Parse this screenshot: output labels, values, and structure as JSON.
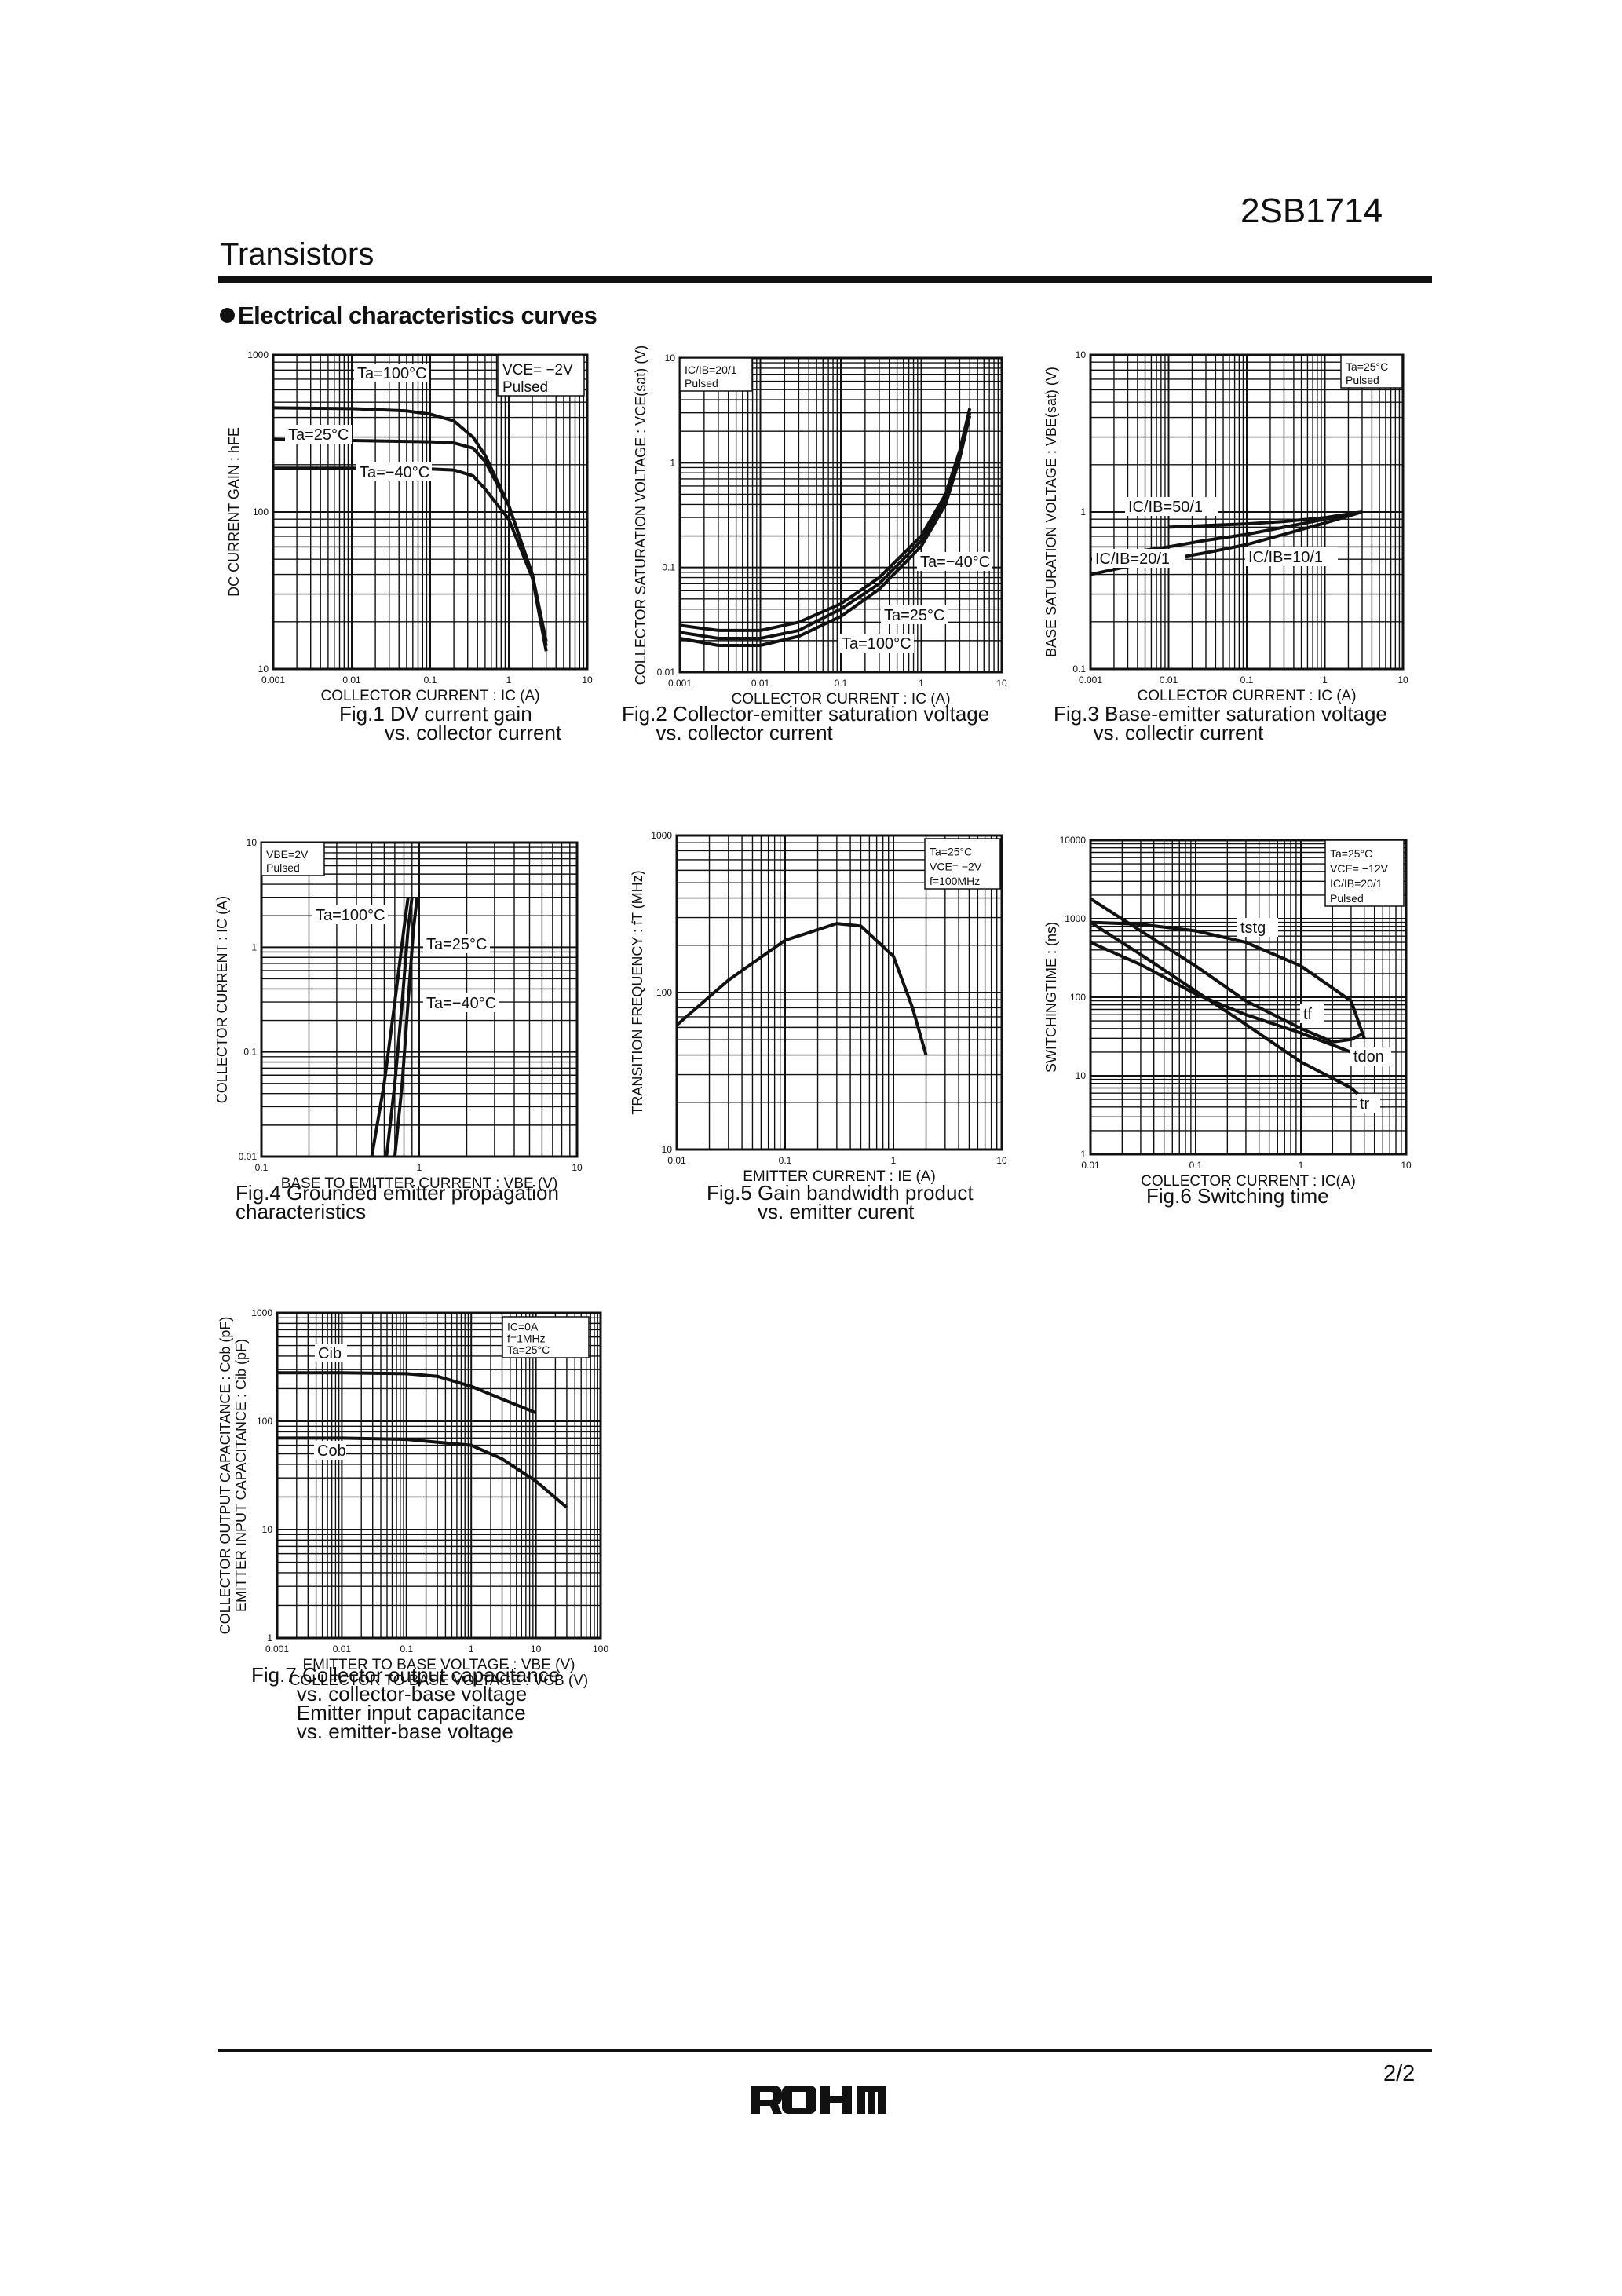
{
  "header": {
    "part_number": "2SB1714",
    "section": "Transistors"
  },
  "heading": "Electrical characteristics curves",
  "figures": [
    {
      "caption": "Fig.1 DV current gain\n        vs. collector current",
      "x_label": "COLLECTOR CURRENT : IC (A)",
      "y_label": "DC CURRENT GAIN : hFE",
      "x_ticks": [
        "0.001",
        "0.01",
        "0.1",
        "1",
        "10"
      ],
      "y_ticks": [
        "10",
        "100",
        "1000"
      ],
      "conditions": [
        "VCE= −2V",
        "Pulsed"
      ],
      "curve_labels": [
        "Ta=100°C",
        "Ta=25°C",
        "Ta=−40°C"
      ]
    },
    {
      "caption": "Fig.2 Collector-emitter saturation voltage\n      vs. collector current",
      "x_label": "COLLECTOR CURRENT : IC (A)",
      "y_label": "COLLECTOR SATURATION VOLTAGE : VCE(sat) (V)",
      "x_ticks": [
        "0.001",
        "0.01",
        "0.1",
        "1",
        "10"
      ],
      "y_ticks": [
        "0.01",
        "0.1",
        "1",
        "10"
      ],
      "conditions": [
        "IC/IB=20/1",
        "Pulsed"
      ],
      "curve_labels": [
        "Ta=−40°C",
        "Ta=25°C",
        "Ta=100°C"
      ]
    },
    {
      "caption": "Fig.3 Base-emitter saturation voltage\n       vs. collectir current",
      "x_label": "COLLECTOR CURRENT : IC (A)",
      "y_label": "BASE SATURATION VOLTAGE : VBE(sat) (V)",
      "x_ticks": [
        "0.001",
        "0.01",
        "0.1",
        "1",
        "10"
      ],
      "y_ticks": [
        "0.1",
        "1",
        "10"
      ],
      "conditions": [
        "Ta=25°C",
        "Pulsed"
      ],
      "curve_labels": [
        "IC/IB=50/1",
        "IC/IB=20/1",
        "IC/IB=10/1"
      ]
    },
    {
      "caption": "Fig.4 Grounded emitter propagation\ncharacteristics",
      "x_label": "BASE TO EMITTER CURRENT : VBE (V)",
      "y_label": "COLLECTOR CURRENT : IC (A)",
      "x_ticks": [
        "0.1",
        "1",
        "10"
      ],
      "y_ticks": [
        "0.01",
        "0.1",
        "1",
        "10"
      ],
      "conditions": [
        "VBE=2V",
        "Pulsed"
      ],
      "curve_labels": [
        "Ta=100°C",
        "Ta=25°C",
        "Ta=−40°C"
      ]
    },
    {
      "caption": "Fig.5 Gain bandwidth product\n         vs. emitter curent",
      "x_label": "EMITTER CURRENT : IE (A)",
      "y_label": "TRANSITION FREQUENCY : fT (MHz)",
      "x_ticks": [
        "0.01",
        "0.1",
        "1",
        "10"
      ],
      "y_ticks": [
        "10",
        "100",
        "1000"
      ],
      "conditions": [
        "Ta=25°C",
        "VCE= −2V",
        "f=100MHz"
      ],
      "curve_labels": []
    },
    {
      "caption": "Fig.6 Switching time",
      "x_label": "COLLECTOR CURRENT : IC(A)",
      "y_label": "SWITCHINGTIME : (ns)",
      "x_ticks": [
        "0.01",
        "0.1",
        "1",
        "10"
      ],
      "y_ticks": [
        "1",
        "10",
        "100",
        "1000",
        "10000"
      ],
      "conditions": [
        "Ta=25°C",
        "VCE= −12V",
        "IC/IB=20/1",
        "Pulsed"
      ],
      "curve_labels": [
        "tstg",
        "tf",
        "tdon",
        "tr"
      ]
    },
    {
      "caption": "Fig.7 Collector output capacitance\n        vs. collector-base voltage\n        Emitter input capacitance\n        vs. emitter-base voltage",
      "x_label": "EMITTER TO BASE VOLTAGE : VBE (V)",
      "x_label_2": "COLLECTOR TO BASE VOLTAGE : VCB (V)",
      "y_label": "COLLECTOR OUTPUT CAPACITANCE : Cob (pF)",
      "y_label_2": "EMITTER INPUT CAPACITANCE : Cib (pF)",
      "x_ticks": [
        "0.001",
        "0.01",
        "0.1",
        "1",
        "10",
        "100"
      ],
      "y_ticks": [
        "1",
        "10",
        "100",
        "1000"
      ],
      "conditions": [
        "IC=0A",
        "f=1MHz",
        "Ta=25°C"
      ],
      "curve_labels": [
        "Cib",
        "Cob"
      ]
    }
  ],
  "chart_data": [
    {
      "type": "line",
      "xscale": "log",
      "yscale": "log",
      "xlim": [
        0.001,
        10
      ],
      "ylim": [
        10,
        1000
      ],
      "series": [
        {
          "name": "Ta=100°C",
          "x": [
            0.001,
            0.01,
            0.05,
            0.1,
            0.2,
            0.35,
            0.5,
            1,
            2,
            3
          ],
          "y": [
            460,
            455,
            440,
            420,
            380,
            300,
            230,
            110,
            40,
            15
          ]
        },
        {
          "name": "Ta=25°C",
          "x": [
            0.001,
            0.01,
            0.1,
            0.2,
            0.35,
            0.5,
            1,
            2,
            3
          ],
          "y": [
            290,
            285,
            280,
            275,
            255,
            210,
            110,
            40,
            14
          ]
        },
        {
          "name": "Ta=−40°C",
          "x": [
            0.001,
            0.01,
            0.1,
            0.2,
            0.35,
            0.5,
            1,
            2,
            3
          ],
          "y": [
            190,
            190,
            188,
            185,
            170,
            140,
            90,
            38,
            13
          ]
        }
      ]
    },
    {
      "type": "line",
      "xscale": "log",
      "yscale": "log",
      "xlim": [
        0.001,
        10
      ],
      "ylim": [
        0.01,
        10
      ],
      "series": [
        {
          "name": "Ta=−40°C",
          "x": [
            0.001,
            0.003,
            0.01,
            0.03,
            0.1,
            0.3,
            1,
            2,
            3,
            4
          ],
          "y": [
            0.028,
            0.025,
            0.025,
            0.03,
            0.045,
            0.08,
            0.2,
            0.5,
            1.3,
            3.3
          ]
        },
        {
          "name": "Ta=25°C",
          "x": [
            0.001,
            0.003,
            0.01,
            0.03,
            0.1,
            0.3,
            1,
            2,
            3,
            4
          ],
          "y": [
            0.024,
            0.021,
            0.021,
            0.025,
            0.04,
            0.07,
            0.18,
            0.45,
            1.2,
            3
          ]
        },
        {
          "name": "Ta=100°C",
          "x": [
            0.001,
            0.003,
            0.01,
            0.03,
            0.1,
            0.3,
            1,
            2,
            3,
            4
          ],
          "y": [
            0.021,
            0.018,
            0.018,
            0.022,
            0.034,
            0.062,
            0.16,
            0.4,
            1.1,
            2.8
          ]
        }
      ]
    },
    {
      "type": "line",
      "xscale": "log",
      "yscale": "log",
      "xlim": [
        0.001,
        10
      ],
      "ylim": [
        0.1,
        10
      ],
      "series": [
        {
          "name": "IC/IB=50/1",
          "x": [
            0.01,
            0.03,
            0.1,
            0.3,
            1,
            3
          ],
          "y": [
            0.8,
            0.82,
            0.84,
            0.87,
            0.92,
            1.0
          ]
        },
        {
          "name": "IC/IB=20/1",
          "x": [
            0.001,
            0.003,
            0.01,
            0.03,
            0.1,
            0.3,
            1,
            3
          ],
          "y": [
            0.5,
            0.55,
            0.6,
            0.66,
            0.72,
            0.8,
            0.9,
            1.0
          ]
        },
        {
          "name": "IC/IB=10/1",
          "x": [
            0.001,
            0.003,
            0.01,
            0.03,
            0.1,
            0.3,
            1,
            3
          ],
          "y": [
            0.4,
            0.45,
            0.5,
            0.55,
            0.62,
            0.72,
            0.85,
            1.0
          ]
        }
      ]
    },
    {
      "type": "line",
      "xscale": "log",
      "yscale": "log",
      "xlim": [
        0.1,
        10
      ],
      "ylim": [
        0.01,
        10
      ],
      "series": [
        {
          "name": "Ta=100°C",
          "x": [
            0.5,
            0.6,
            0.7,
            0.8,
            0.85
          ],
          "y": [
            0.01,
            0.05,
            0.3,
            1.5,
            3
          ]
        },
        {
          "name": "Ta=25°C",
          "x": [
            0.62,
            0.7,
            0.78,
            0.85,
            0.9
          ],
          "y": [
            0.01,
            0.05,
            0.3,
            1.5,
            3
          ]
        },
        {
          "name": "Ta=−40°C",
          "x": [
            0.7,
            0.78,
            0.85,
            0.92,
            0.97
          ],
          "y": [
            0.01,
            0.05,
            0.3,
            1.5,
            3
          ]
        }
      ]
    },
    {
      "type": "line",
      "xscale": "log",
      "yscale": "log",
      "xlim": [
        0.01,
        10
      ],
      "ylim": [
        10,
        1000
      ],
      "series": [
        {
          "x": [
            0.01,
            0.03,
            0.1,
            0.3,
            0.5,
            1,
            1.5,
            2
          ],
          "y": [
            62,
            120,
            215,
            275,
            265,
            170,
            80,
            40
          ]
        }
      ]
    },
    {
      "type": "line",
      "xscale": "log",
      "yscale": "log",
      "xlim": [
        0.01,
        10
      ],
      "ylim": [
        1,
        10000
      ],
      "series": [
        {
          "name": "tstg",
          "x": [
            0.01,
            0.03,
            0.1,
            0.3,
            1,
            3,
            4
          ],
          "y": [
            900,
            850,
            700,
            500,
            250,
            90,
            30
          ]
        },
        {
          "name": "tf",
          "x": [
            0.01,
            0.03,
            0.1,
            0.3,
            1,
            2,
            3,
            4
          ],
          "y": [
            1800,
            700,
            250,
            90,
            40,
            27,
            29,
            35
          ]
        },
        {
          "name": "tdon",
          "x": [
            0.01,
            0.03,
            0.1,
            0.3,
            1,
            3,
            4
          ],
          "y": [
            500,
            260,
            110,
            60,
            35,
            20,
            17
          ]
        },
        {
          "name": "tr",
          "x": [
            0.01,
            0.03,
            0.1,
            0.3,
            1,
            3,
            4
          ],
          "y": [
            900,
            350,
            120,
            45,
            15,
            7,
            5
          ]
        }
      ]
    },
    {
      "type": "line",
      "xscale": "log",
      "yscale": "log",
      "xlim": [
        0.001,
        100
      ],
      "ylim": [
        1,
        1000
      ],
      "series": [
        {
          "name": "Cib",
          "x": [
            0.001,
            0.01,
            0.1,
            0.3,
            1,
            3,
            10
          ],
          "y": [
            280,
            280,
            275,
            260,
            210,
            160,
            120
          ]
        },
        {
          "name": "Cob",
          "x": [
            0.001,
            0.01,
            0.1,
            1,
            3,
            10,
            30
          ],
          "y": [
            70,
            70,
            68,
            60,
            45,
            28,
            16
          ]
        }
      ]
    }
  ],
  "footer": {
    "page": "2/2",
    "logo_text": "ROHM"
  }
}
